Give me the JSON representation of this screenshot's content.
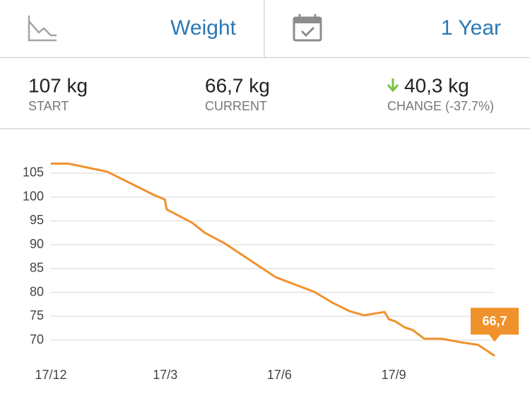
{
  "header": {
    "metric": "Weight",
    "period": "1 Year"
  },
  "stats": {
    "start": {
      "value": "107 kg",
      "label": "START"
    },
    "current": {
      "value": "66,7 kg",
      "label": "CURRENT"
    },
    "change": {
      "value": "40,3 kg",
      "label": "CHANGE (-37.7%)"
    }
  },
  "chart_data": {
    "type": "line",
    "color": "#f0922b",
    "grid": true,
    "x": [
      0,
      0.46,
      1.48,
      2.71,
      2.99,
      3.04,
      3.71,
      4.04,
      4.56,
      5.9,
      6.92,
      7.38,
      7.83,
      8.22,
      8.76,
      8.87,
      9.05,
      9.28,
      9.5,
      9.8,
      10.26,
      10.72,
      11.22,
      11.65
    ],
    "values": [
      107,
      107,
      105.3,
      100.4,
      99.5,
      97.4,
      94.6,
      92.5,
      90.3,
      83.2,
      80.1,
      77.9,
      76.1,
      75.2,
      75.9,
      74.4,
      73.9,
      72.7,
      72.1,
      70.3,
      70.3,
      69.6,
      69.0,
      66.7
    ],
    "value_labels": [
      null,
      null,
      null,
      null,
      null,
      null,
      null,
      null,
      null,
      null,
      null,
      null,
      null,
      null,
      null,
      null,
      null,
      null,
      null,
      null,
      null,
      null,
      null,
      "66,7"
    ],
    "xlim": [
      0,
      11.65
    ],
    "xticks": [
      {
        "value": 0,
        "label": "17/12"
      },
      {
        "value": 3,
        "label": "17/3"
      },
      {
        "value": 6,
        "label": "17/6"
      },
      {
        "value": 9,
        "label": "17/9"
      }
    ],
    "ylim": [
      66,
      107.5
    ],
    "yticks": [
      70,
      75,
      80,
      85,
      90,
      95,
      100,
      105
    ]
  }
}
